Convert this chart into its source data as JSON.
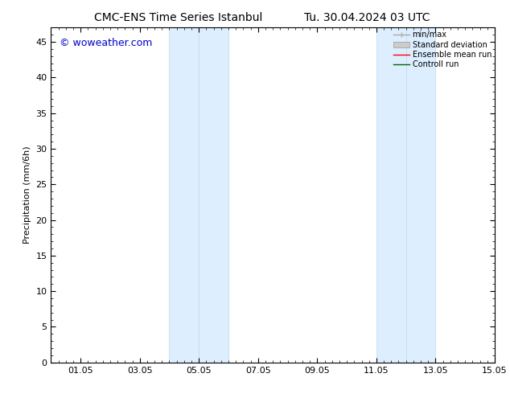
{
  "title": "CMC-ENS Time Series Istanbul",
  "title_right": "Tu. 30.04.2024 03 UTC",
  "ylabel": "Precipitation (mm/6h)",
  "watermark": "© woweather.com",
  "watermark_color": "#0000cc",
  "xlim_start": 0,
  "xlim_end": 360,
  "ylim": [
    0,
    47
  ],
  "yticks": [
    0,
    5,
    10,
    15,
    20,
    25,
    30,
    35,
    40,
    45
  ],
  "xtick_labels": [
    "01.05",
    "03.05",
    "05.05",
    "07.05",
    "09.05",
    "11.05",
    "13.05",
    "15.05"
  ],
  "xtick_positions": [
    24,
    72,
    120,
    168,
    216,
    264,
    312,
    360
  ],
  "shaded_bands": [
    {
      "x_start": 96,
      "x_end": 120
    },
    {
      "x_start": 120,
      "x_end": 144
    },
    {
      "x_start": 264,
      "x_end": 288
    },
    {
      "x_start": 288,
      "x_end": 312
    }
  ],
  "shaded_color": "#ddeeff",
  "shaded_edge_color": "#c5ddf0",
  "bg_color": "#ffffff",
  "plot_bg_color": "#ffffff",
  "legend_items": [
    {
      "label": "min/max",
      "color": "#aaaaaa",
      "lw": 1.0
    },
    {
      "label": "Standard deviation",
      "color": "#cccccc",
      "lw": 5
    },
    {
      "label": "Ensemble mean run",
      "color": "#ff0000",
      "lw": 1.0
    },
    {
      "label": "Controll run",
      "color": "#006600",
      "lw": 1.0
    }
  ],
  "font_size": 8,
  "title_font_size": 10,
  "minor_xtick_step": 6,
  "minor_ytick_step": 1
}
